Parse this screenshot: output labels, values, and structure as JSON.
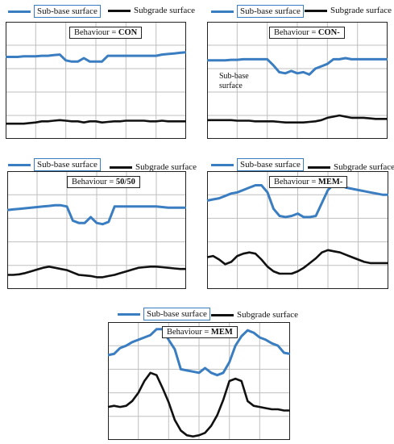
{
  "colors": {
    "subbase": "#3a7dc0",
    "subgrade": "#111111",
    "grid": "#bfbfbf",
    "frame": "#222222"
  },
  "legend": {
    "subbase_label": "Sub-base surface",
    "subgrade_label": "Subgrade surface"
  },
  "chart_data": [
    {
      "type": "line",
      "behaviour_prefix": "Behaviour = ",
      "behaviour_value": "CON",
      "annotation": "",
      "ylim": [
        0,
        100
      ],
      "grid": true,
      "series": [
        {
          "name": "Sub-base surface",
          "x": [
            0,
            1,
            2,
            3,
            4,
            5,
            6,
            7,
            8,
            9,
            10,
            11,
            12,
            13,
            14,
            15,
            16,
            17,
            18,
            19,
            20,
            21,
            22,
            23,
            24,
            25,
            26,
            27,
            28,
            29,
            30
          ],
          "values": [
            70,
            70,
            70,
            70.5,
            70.5,
            70.5,
            71,
            71,
            71.5,
            72,
            67,
            66,
            66,
            69,
            66,
            66,
            66,
            71,
            71,
            71,
            71,
            71,
            71,
            71,
            71,
            71,
            72,
            72.5,
            73,
            73.5,
            74
          ]
        },
        {
          "name": "Subgrade surface",
          "x": [
            0,
            1,
            2,
            3,
            4,
            5,
            6,
            7,
            8,
            9,
            10,
            11,
            12,
            13,
            14,
            15,
            16,
            17,
            18,
            19,
            20,
            21,
            22,
            23,
            24,
            25,
            26,
            27,
            28,
            29,
            30
          ],
          "values": [
            13,
            13,
            13,
            13,
            13.5,
            14,
            15,
            15,
            15.5,
            16,
            15.5,
            15,
            15,
            14,
            15,
            15,
            14,
            14.5,
            15,
            15,
            15.5,
            15.5,
            15.5,
            15.5,
            15,
            15,
            15.5,
            15,
            15,
            15,
            15
          ]
        }
      ]
    },
    {
      "type": "line",
      "behaviour_prefix": "Behaviour = ",
      "behaviour_value": "CON-",
      "annotation": "Sub-base surface",
      "ylim": [
        0,
        100
      ],
      "grid": true,
      "series": [
        {
          "name": "Sub-base surface",
          "x": [
            0,
            1,
            2,
            3,
            4,
            5,
            6,
            7,
            8,
            9,
            10,
            11,
            12,
            13,
            14,
            15,
            16,
            17,
            18,
            19,
            20,
            21,
            22,
            23,
            24,
            25,
            26,
            27,
            28,
            29,
            30
          ],
          "values": [
            67,
            67,
            67,
            67,
            67.5,
            67.5,
            68,
            68,
            68,
            68,
            68,
            63,
            57,
            56,
            58,
            56,
            57,
            55,
            60,
            62,
            64,
            68,
            68,
            69,
            68,
            68,
            68,
            68,
            68,
            68,
            68
          ]
        },
        {
          "name": "Subgrade surface",
          "x": [
            0,
            1,
            2,
            3,
            4,
            5,
            6,
            7,
            8,
            9,
            10,
            11,
            12,
            13,
            14,
            15,
            16,
            17,
            18,
            19,
            20,
            21,
            22,
            23,
            24,
            25,
            26,
            27,
            28,
            29,
            30
          ],
          "values": [
            16,
            16,
            16,
            16,
            16,
            15.5,
            15.5,
            15.5,
            15,
            15,
            15,
            15,
            14.5,
            14,
            14,
            14,
            14,
            14.5,
            15,
            16,
            18,
            19,
            20,
            19,
            18,
            18,
            18,
            17.5,
            17,
            17,
            17
          ]
        }
      ]
    },
    {
      "type": "line",
      "behaviour_prefix": "Behaviour = ",
      "behaviour_value": "50/50",
      "annotation": "",
      "ylim": [
        0,
        100
      ],
      "grid": true,
      "series": [
        {
          "name": "Sub-base surface",
          "x": [
            0,
            1,
            2,
            3,
            4,
            5,
            6,
            7,
            8,
            9,
            10,
            11,
            12,
            13,
            14,
            15,
            16,
            17,
            18,
            19,
            20,
            21,
            22,
            23,
            24,
            25,
            26,
            27,
            28,
            29,
            30
          ],
          "values": [
            67,
            67.5,
            68,
            68.5,
            69,
            69.5,
            70,
            70.5,
            71,
            71,
            70,
            58,
            56,
            56,
            61,
            56,
            55,
            57,
            70,
            70,
            70,
            70,
            70,
            70,
            70,
            70,
            69.5,
            69,
            69,
            69,
            69
          ]
        },
        {
          "name": "Subgrade surface",
          "x": [
            0,
            1,
            2,
            3,
            4,
            5,
            6,
            7,
            8,
            9,
            10,
            11,
            12,
            13,
            14,
            15,
            16,
            17,
            18,
            19,
            20,
            21,
            22,
            23,
            24,
            25,
            26,
            27,
            28,
            29,
            30
          ],
          "values": [
            12,
            12,
            12.5,
            13.5,
            15,
            16.5,
            18,
            19,
            18,
            17,
            16,
            14,
            12,
            11.5,
            11,
            10,
            10,
            11,
            12,
            13.5,
            15,
            16.5,
            18,
            18.5,
            19,
            19,
            18.5,
            18,
            17.5,
            17,
            17
          ]
        }
      ]
    },
    {
      "type": "line",
      "behaviour_prefix": "Behaviour = ",
      "behaviour_value": "MEM-",
      "annotation": "",
      "ylim": [
        0,
        100
      ],
      "grid": true,
      "series": [
        {
          "name": "Sub-base surface",
          "x": [
            0,
            1,
            2,
            3,
            4,
            5,
            6,
            7,
            8,
            9,
            10,
            11,
            12,
            13,
            14,
            15,
            16,
            17,
            18,
            19,
            20,
            21,
            22,
            23,
            24,
            25,
            26,
            27,
            28,
            29,
            30
          ],
          "values": [
            75,
            76,
            77,
            79,
            81,
            82,
            84,
            86,
            88,
            88,
            82,
            68,
            62,
            61,
            62,
            64,
            61,
            61,
            62,
            73,
            84,
            89,
            88,
            86,
            85,
            84,
            83,
            82,
            81,
            80,
            80
          ]
        },
        {
          "name": "Subgrade surface",
          "x": [
            0,
            1,
            2,
            3,
            4,
            5,
            6,
            7,
            8,
            9,
            10,
            11,
            12,
            13,
            14,
            15,
            16,
            17,
            18,
            19,
            20,
            21,
            22,
            23,
            24,
            25,
            26,
            27,
            28,
            29,
            30
          ],
          "values": [
            27,
            28,
            25,
            21,
            23,
            28,
            30,
            31,
            30,
            25,
            19,
            15,
            13,
            13,
            13,
            15,
            18,
            22,
            26,
            31,
            33,
            32,
            31,
            29,
            27,
            25,
            23,
            22,
            22,
            22,
            22
          ]
        }
      ]
    },
    {
      "type": "line",
      "behaviour_prefix": "Behaviour = ",
      "behaviour_value": "MEM",
      "annotation": "",
      "ylim": [
        0,
        100
      ],
      "grid": true,
      "series": [
        {
          "name": "Sub-base surface",
          "x": [
            0,
            1,
            2,
            3,
            4,
            5,
            6,
            7,
            8,
            9,
            10,
            11,
            12,
            13,
            14,
            15,
            16,
            17,
            18,
            19,
            20,
            21,
            22,
            23,
            24,
            25,
            26,
            27,
            28,
            29,
            30
          ],
          "values": [
            72,
            73,
            78,
            80,
            83,
            85,
            87,
            89,
            94,
            94,
            85,
            77,
            60,
            59,
            58,
            57,
            61,
            57,
            55,
            57,
            66,
            80,
            88,
            93,
            91,
            87,
            85,
            82,
            80,
            74,
            73
          ]
        },
        {
          "name": "Subgrade surface",
          "x": [
            0,
            1,
            2,
            3,
            4,
            5,
            6,
            7,
            8,
            9,
            10,
            11,
            12,
            13,
            14,
            15,
            16,
            17,
            18,
            19,
            20,
            21,
            22,
            23,
            24,
            25,
            26,
            27,
            28,
            29,
            30
          ],
          "values": [
            28,
            29,
            28,
            29,
            33,
            40,
            50,
            57,
            55,
            44,
            32,
            17,
            8,
            4,
            3,
            4,
            6,
            12,
            21,
            34,
            50,
            52,
            50,
            33,
            29,
            28,
            27,
            26,
            26,
            25,
            25
          ]
        }
      ]
    }
  ]
}
